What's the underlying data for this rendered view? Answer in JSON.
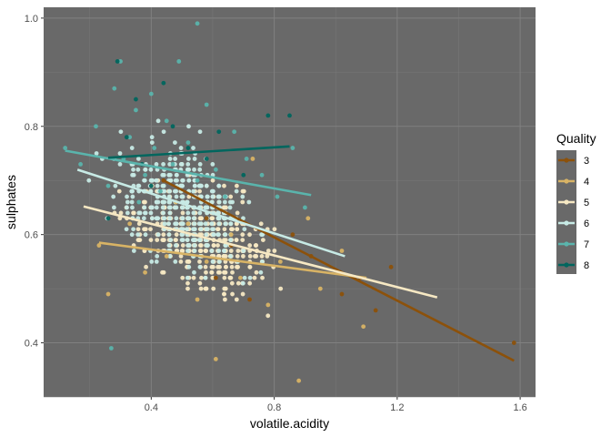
{
  "chart_data": {
    "type": "scatter",
    "xlabel": "volatile.acidity",
    "ylabel": "sulphates",
    "xlim": [
      0.05,
      1.65
    ],
    "ylim": [
      0.3,
      1.02
    ],
    "xticks": [
      0.4,
      0.8,
      1.2,
      1.6
    ],
    "yticks": [
      0.4,
      0.6,
      0.8,
      1.0
    ],
    "xtick_labels": [
      "0.4",
      "0.8",
      "1.2",
      "1.6"
    ],
    "ytick_labels": [
      "0.4",
      "0.6",
      "0.8",
      "1.0"
    ],
    "grid": true,
    "panel_background": "#696969",
    "legend": {
      "title": "Quality",
      "position": "right"
    },
    "series": [
      {
        "name": "3",
        "color": "#8c510a",
        "trend": {
          "x": [
            0.44,
            1.58
          ],
          "y": [
            0.7,
            0.367
          ]
        },
        "points": [
          [
            0.44,
            0.7
          ],
          [
            0.58,
            0.63
          ],
          [
            0.61,
            0.52
          ],
          [
            0.66,
            0.58
          ],
          [
            0.72,
            0.48
          ],
          [
            0.86,
            0.6
          ],
          [
            0.92,
            0.56
          ],
          [
            1.02,
            0.49
          ],
          [
            1.08,
            0.52
          ],
          [
            1.13,
            0.46
          ],
          [
            1.18,
            0.54
          ],
          [
            1.58,
            0.4
          ]
        ]
      },
      {
        "name": "4",
        "color": "#d8b365",
        "trend": {
          "x": [
            0.23,
            1.1
          ],
          "y": [
            0.585,
            0.52
          ]
        },
        "points": [
          [
            0.23,
            0.58
          ],
          [
            0.26,
            0.49
          ],
          [
            0.33,
            0.62
          ],
          [
            0.38,
            0.53
          ],
          [
            0.45,
            0.56
          ],
          [
            0.48,
            0.66
          ],
          [
            0.52,
            0.62
          ],
          [
            0.55,
            0.48
          ],
          [
            0.58,
            0.55
          ],
          [
            0.61,
            0.37
          ],
          [
            0.66,
            0.6
          ],
          [
            0.69,
            0.52
          ],
          [
            0.73,
            0.74
          ],
          [
            0.78,
            0.47
          ],
          [
            0.82,
            0.55
          ],
          [
            0.88,
            0.33
          ],
          [
            0.91,
            0.63
          ],
          [
            0.95,
            0.5
          ],
          [
            1.02,
            0.57
          ],
          [
            1.09,
            0.43
          ]
        ]
      },
      {
        "name": "5",
        "color": "#f6e8c3",
        "trend": {
          "x": [
            0.18,
            1.33
          ],
          "y": [
            0.652,
            0.484
          ]
        },
        "points": []
      },
      {
        "name": "6",
        "color": "#c7eae5",
        "trend": {
          "x": [
            0.16,
            1.03
          ],
          "y": [
            0.72,
            0.56
          ]
        },
        "points": []
      },
      {
        "name": "7",
        "color": "#5ab4ac",
        "trend": {
          "x": [
            0.12,
            0.92
          ],
          "y": [
            0.755,
            0.673
          ]
        },
        "points": [
          [
            0.12,
            0.76
          ],
          [
            0.17,
            0.73
          ],
          [
            0.22,
            0.8
          ],
          [
            0.26,
            0.69
          ],
          [
            0.28,
            0.87
          ],
          [
            0.3,
            0.92
          ],
          [
            0.31,
            0.74
          ],
          [
            0.33,
            0.78
          ],
          [
            0.35,
            0.83
          ],
          [
            0.36,
            0.66
          ],
          [
            0.38,
            0.71
          ],
          [
            0.4,
            0.86
          ],
          [
            0.41,
            0.76
          ],
          [
            0.43,
            0.68
          ],
          [
            0.45,
            0.81
          ],
          [
            0.47,
            0.73
          ],
          [
            0.49,
            0.92
          ],
          [
            0.52,
            0.77
          ],
          [
            0.55,
            0.7
          ],
          [
            0.58,
            0.84
          ],
          [
            0.61,
            0.72
          ],
          [
            0.64,
            0.67
          ],
          [
            0.67,
            0.79
          ],
          [
            0.71,
            0.74
          ],
          [
            0.76,
            0.71
          ],
          [
            0.81,
            0.67
          ],
          [
            0.86,
            0.76
          ],
          [
            0.9,
            0.65
          ],
          [
            0.27,
            0.39
          ],
          [
            0.55,
            0.99
          ]
        ]
      },
      {
        "name": "8",
        "color": "#01665e",
        "trend": {
          "x": [
            0.26,
            0.85
          ],
          "y": [
            0.742,
            0.763
          ]
        },
        "points": [
          [
            0.26,
            0.63
          ],
          [
            0.29,
            0.92
          ],
          [
            0.32,
            0.78
          ],
          [
            0.35,
            0.85
          ],
          [
            0.37,
            0.73
          ],
          [
            0.4,
            0.69
          ],
          [
            0.44,
            0.88
          ],
          [
            0.47,
            0.8
          ],
          [
            0.52,
            0.76
          ],
          [
            0.58,
            0.74
          ],
          [
            0.62,
            0.79
          ],
          [
            0.7,
            0.71
          ],
          [
            0.78,
            0.82
          ],
          [
            0.85,
            0.82
          ]
        ]
      }
    ]
  }
}
